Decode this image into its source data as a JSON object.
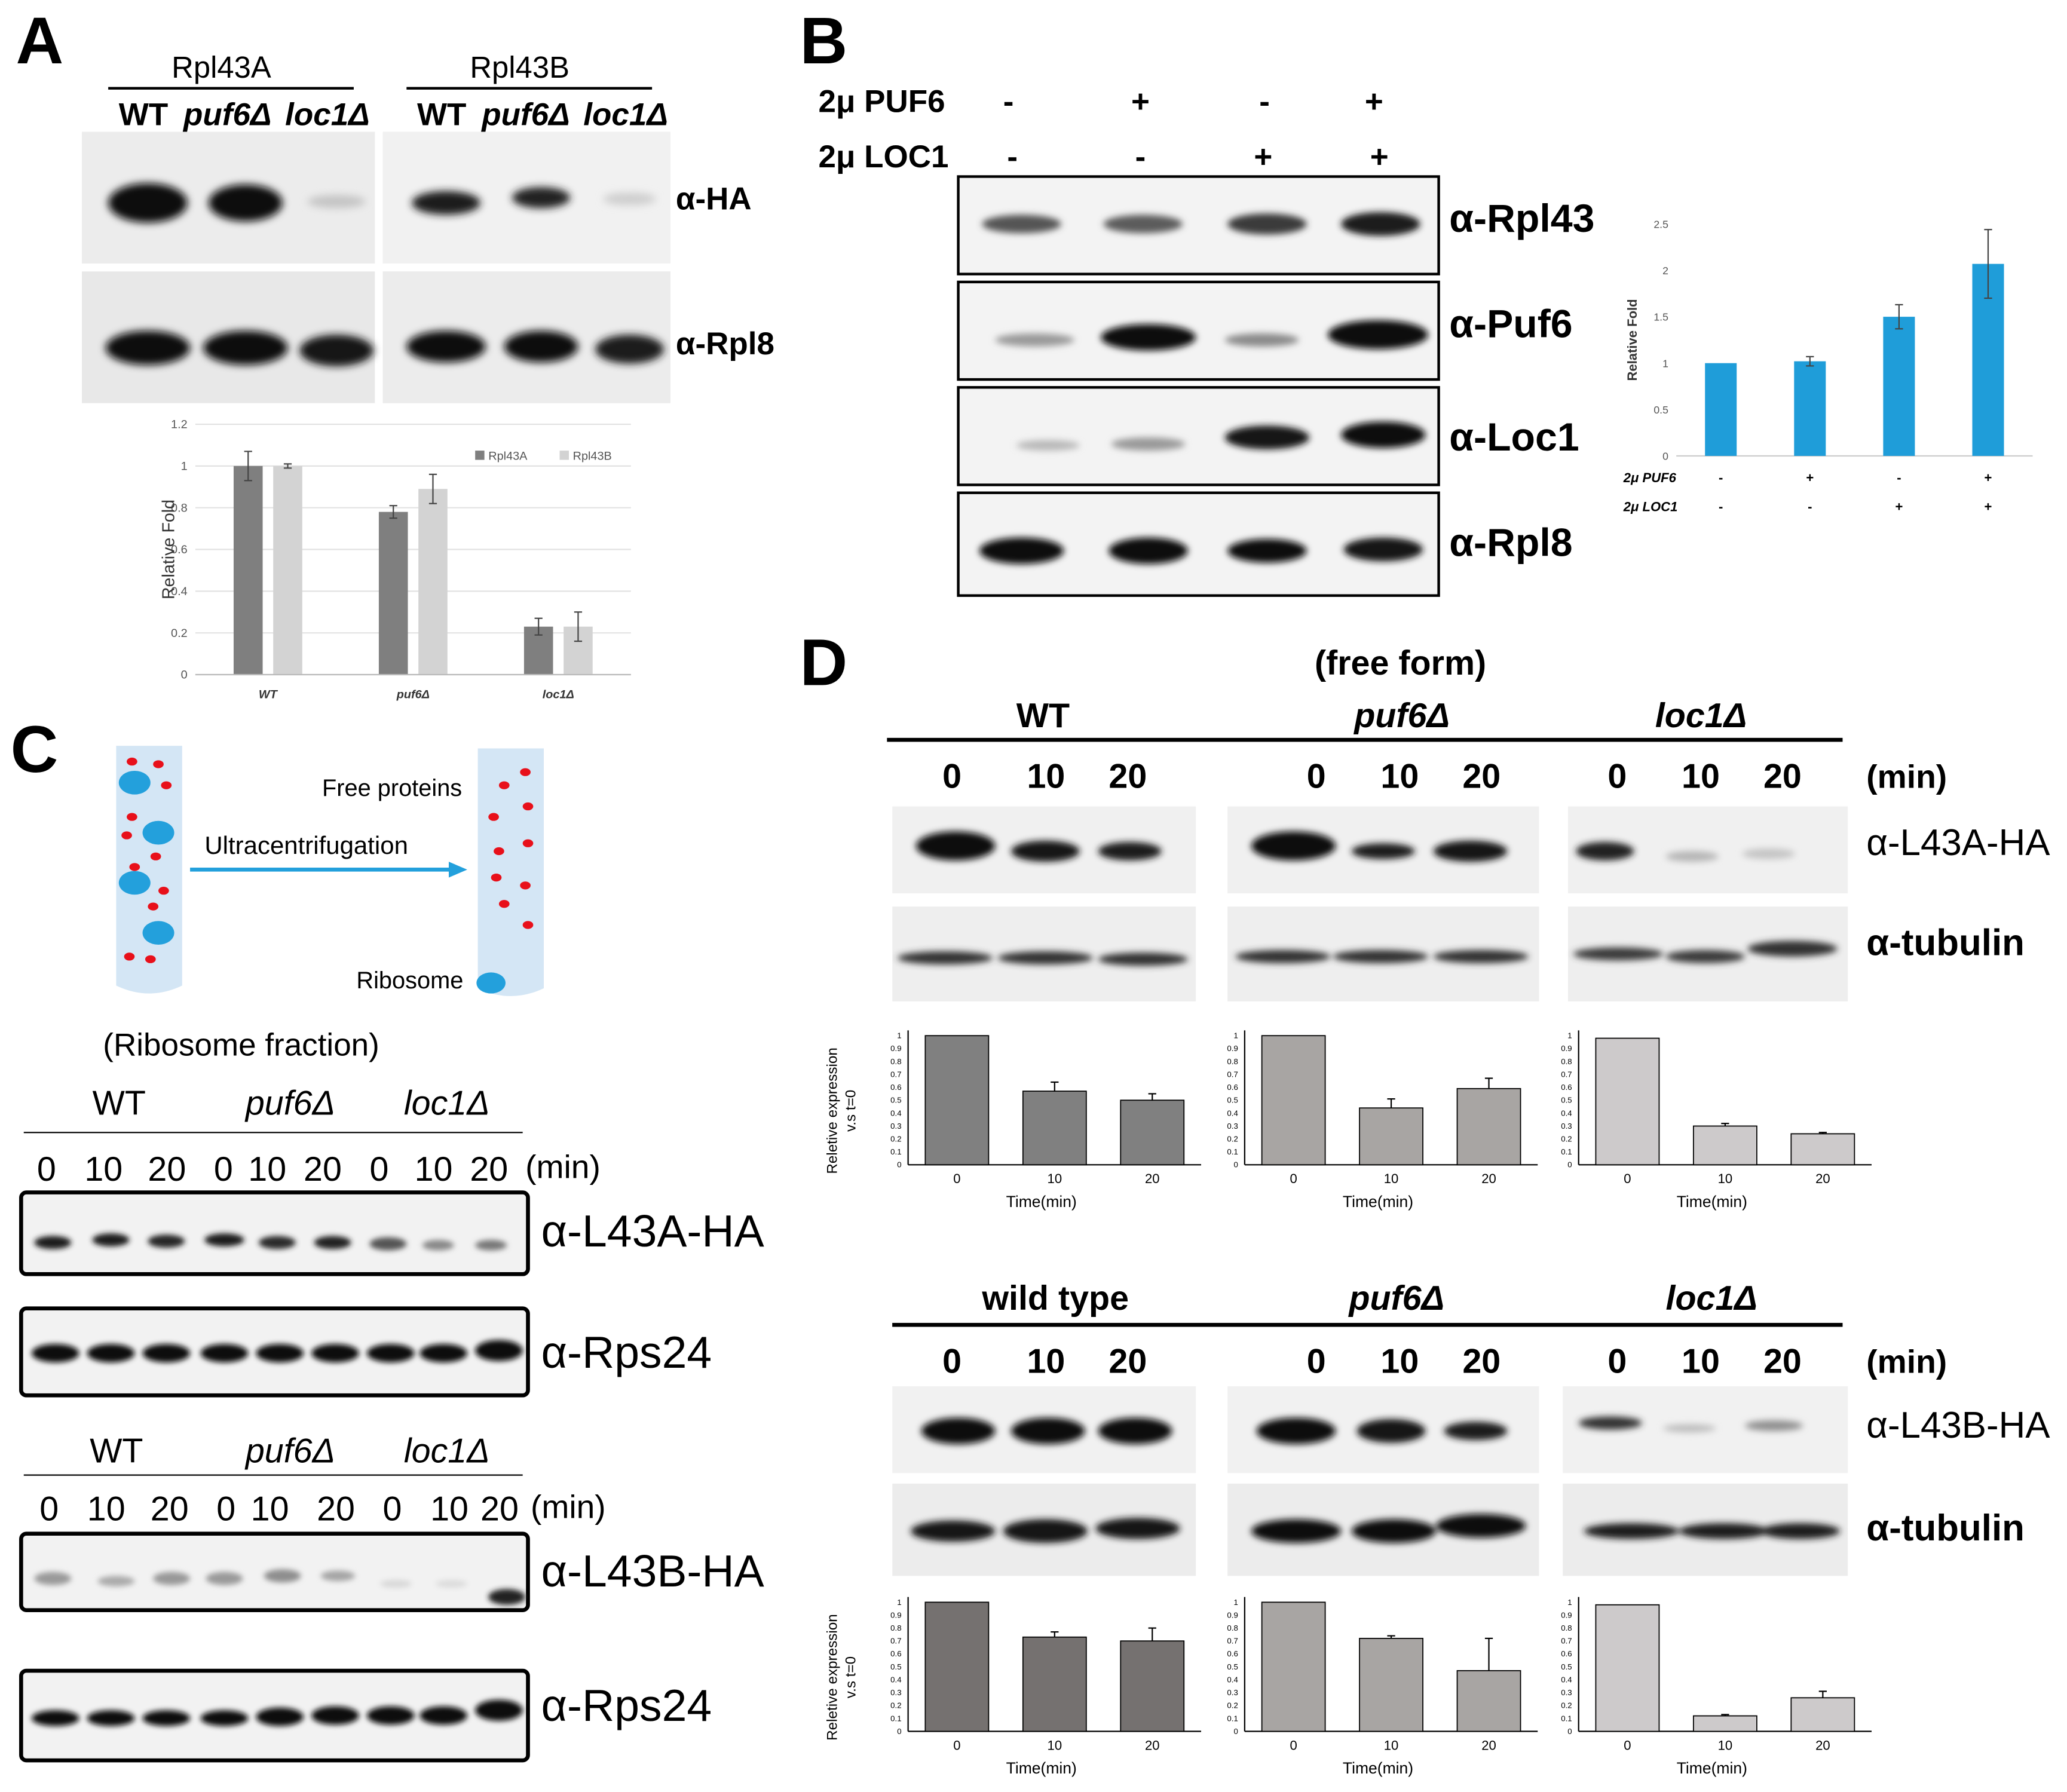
{
  "panels": {
    "A": {
      "letter": "A",
      "groups": [
        {
          "name": "Rpl43A",
          "lanes": [
            "WT",
            "puf6Δ",
            "loc1Δ"
          ]
        },
        {
          "name": "Rpl43B",
          "lanes": [
            "WT",
            "puf6Δ",
            "loc1Δ"
          ]
        }
      ],
      "blots": [
        "α-HA",
        "α-Rpl8"
      ]
    },
    "B": {
      "letter": "B",
      "rows": [
        {
          "label": "2μ PUF6",
          "values": [
            "-",
            "+",
            "-",
            "+"
          ]
        },
        {
          "label": "2μ LOC1",
          "values": [
            "-",
            "-",
            "+",
            "+"
          ]
        }
      ],
      "blots": [
        "α-Rpl43",
        "α-Puf6",
        "α-Loc1",
        "α-Rpl8"
      ]
    },
    "C": {
      "letter": "C",
      "schematic": {
        "free_label": "Free proteins",
        "arrow_label": "Ultracentrifugation",
        "ribosome_label": "Ribosome"
      },
      "fraction_title": "(Ribosome fraction)",
      "strains": [
        "WT",
        "puf6Δ",
        "loc1Δ"
      ],
      "times": [
        "0",
        "10",
        "20"
      ],
      "min_label": "(min)",
      "blots_top": [
        "α-L43A-HA",
        "α-Rps24"
      ],
      "blots_bottom": [
        "α-L43B-HA",
        "α-Rps24"
      ]
    },
    "D": {
      "letter": "D",
      "title": "(free form)",
      "strains_top": [
        "WT",
        "puf6Δ",
        "loc1Δ"
      ],
      "strains_bottom": [
        "wild type",
        "puf6Δ",
        "loc1Δ"
      ],
      "times": [
        "0",
        "10",
        "20"
      ],
      "min_label": "(min)",
      "blots_top": [
        "α-L43A-HA",
        "α-tubulin"
      ],
      "blots_bottom": [
        "α-L43B-HA",
        "α-tubulin"
      ]
    }
  },
  "chart_data": [
    {
      "id": "A",
      "type": "bar",
      "categories": [
        "WT",
        "puf6Δ",
        "loc1Δ"
      ],
      "series": [
        {
          "name": "Rpl43A",
          "values": [
            1.0,
            0.78,
            0.23
          ],
          "errors": [
            0.07,
            0.03,
            0.04
          ],
          "color": "#7f7f7f"
        },
        {
          "name": "Rpl43B",
          "values": [
            1.0,
            0.89,
            0.23
          ],
          "errors": [
            0.01,
            0.07,
            0.07
          ],
          "color": "#d3d3d3"
        }
      ],
      "ylabel": "Relative Fold",
      "ylim": [
        0,
        1.2
      ],
      "yticks": [
        "0",
        "0.2",
        "0.4",
        "0.6",
        "0.8",
        "1",
        "1.2"
      ],
      "legend": "top-right"
    },
    {
      "id": "B",
      "type": "bar",
      "categories": [
        "1",
        "2",
        "3",
        "4"
      ],
      "values": [
        1.0,
        1.02,
        1.5,
        2.07
      ],
      "errors": [
        0.0,
        0.05,
        0.13,
        0.37
      ],
      "ylabel": "Relative Fold",
      "ylim": [
        0,
        2.5
      ],
      "yticks": [
        "0",
        "0.5",
        "1",
        "1.5",
        "2",
        "2.5"
      ],
      "row_labels": [
        {
          "label": "2μ PUF6",
          "values": [
            "-",
            "+",
            "-",
            "+"
          ]
        },
        {
          "label": "2μ LOC1",
          "values": [
            "-",
            "-",
            "+",
            "+"
          ]
        }
      ],
      "color": "#1f9dd9"
    },
    {
      "id": "D-L43A-WT",
      "type": "bar",
      "categories": [
        "0",
        "10",
        "20"
      ],
      "values": [
        1.0,
        0.57,
        0.5
      ],
      "errors": [
        0,
        0.07,
        0.05
      ],
      "ylabel": "Reletive expression v.s t=0",
      "xlabel": "Time(min)",
      "ylim": [
        0,
        1
      ],
      "color": "#808080"
    },
    {
      "id": "D-L43A-puf6",
      "type": "bar",
      "categories": [
        "0",
        "10",
        "20"
      ],
      "values": [
        1.0,
        0.44,
        0.59
      ],
      "errors": [
        0,
        0.07,
        0.08
      ],
      "xlabel": "Time(min)",
      "ylim": [
        0,
        1
      ],
      "color": "#a8a5a3"
    },
    {
      "id": "D-L43A-loc1",
      "type": "bar",
      "categories": [
        "0",
        "10",
        "20"
      ],
      "values": [
        0.98,
        0.3,
        0.24
      ],
      "errors": [
        0,
        0.02,
        0.01
      ],
      "xlabel": "Time(min)",
      "ylim": [
        0,
        1
      ],
      "color": "#cdcacb"
    },
    {
      "id": "D-L43B-WT",
      "type": "bar",
      "categories": [
        "0",
        "10",
        "20"
      ],
      "values": [
        1.0,
        0.73,
        0.7
      ],
      "errors": [
        0,
        0.04,
        0.1
      ],
      "ylabel": "Reletive expression v.s t=0",
      "xlabel": "Time(min)",
      "ylim": [
        0,
        1
      ],
      "color": "#757170"
    },
    {
      "id": "D-L43B-puf6",
      "type": "bar",
      "categories": [
        "0",
        "10",
        "20"
      ],
      "values": [
        1.0,
        0.72,
        0.47
      ],
      "errors": [
        0,
        0.02,
        0.25
      ],
      "xlabel": "Time(min)",
      "ylim": [
        0,
        1
      ],
      "color": "#a8a5a3"
    },
    {
      "id": "D-L43B-loc1",
      "type": "bar",
      "categories": [
        "0",
        "10",
        "20"
      ],
      "values": [
        0.98,
        0.12,
        0.26
      ],
      "errors": [
        0,
        0.01,
        0.05
      ],
      "xlabel": "Time(min)",
      "ylim": [
        0,
        1
      ],
      "color": "#cdcacb"
    }
  ],
  "d_yticks": [
    "0",
    "0.1",
    "0.2",
    "0.3",
    "0.4",
    "0.5",
    "0.6",
    "0.7",
    "0.8",
    "0.9",
    "1"
  ]
}
